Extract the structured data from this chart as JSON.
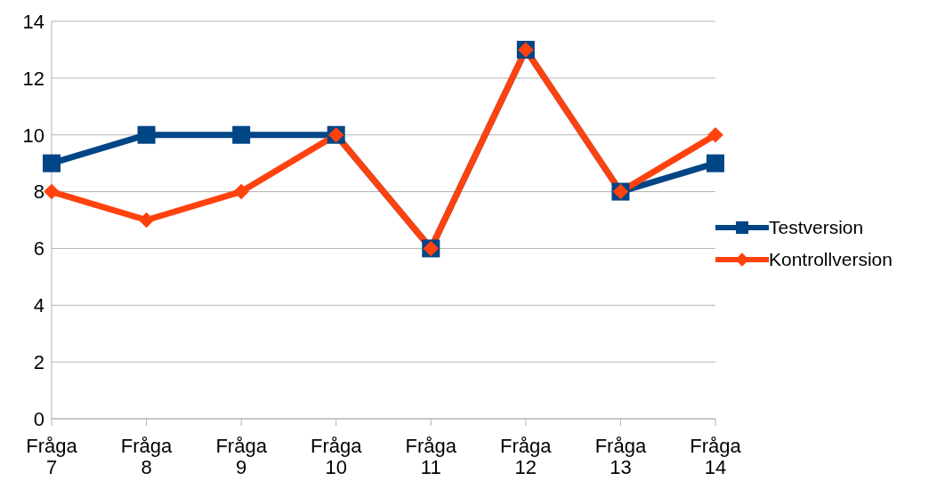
{
  "chart_data": {
    "type": "line",
    "categories": [
      "Fråga 7",
      "Fråga 8",
      "Fråga 9",
      "Fråga 10",
      "Fråga 11",
      "Fråga 12",
      "Fråga 13",
      "Fråga 14"
    ],
    "series": [
      {
        "name": "Testversion",
        "color": "#004586",
        "marker": "square",
        "values": [
          9,
          10,
          10,
          10,
          6,
          13,
          8,
          9
        ]
      },
      {
        "name": "Kontrollversion",
        "color": "#ff420e",
        "marker": "diamond",
        "values": [
          8,
          7,
          8,
          10,
          6,
          13,
          8,
          10
        ]
      }
    ],
    "ylim": [
      0,
      14
    ],
    "yticks": [
      0,
      2,
      4,
      6,
      8,
      10,
      12,
      14
    ],
    "grid": "y",
    "legend": "right",
    "line_style": "solid"
  }
}
